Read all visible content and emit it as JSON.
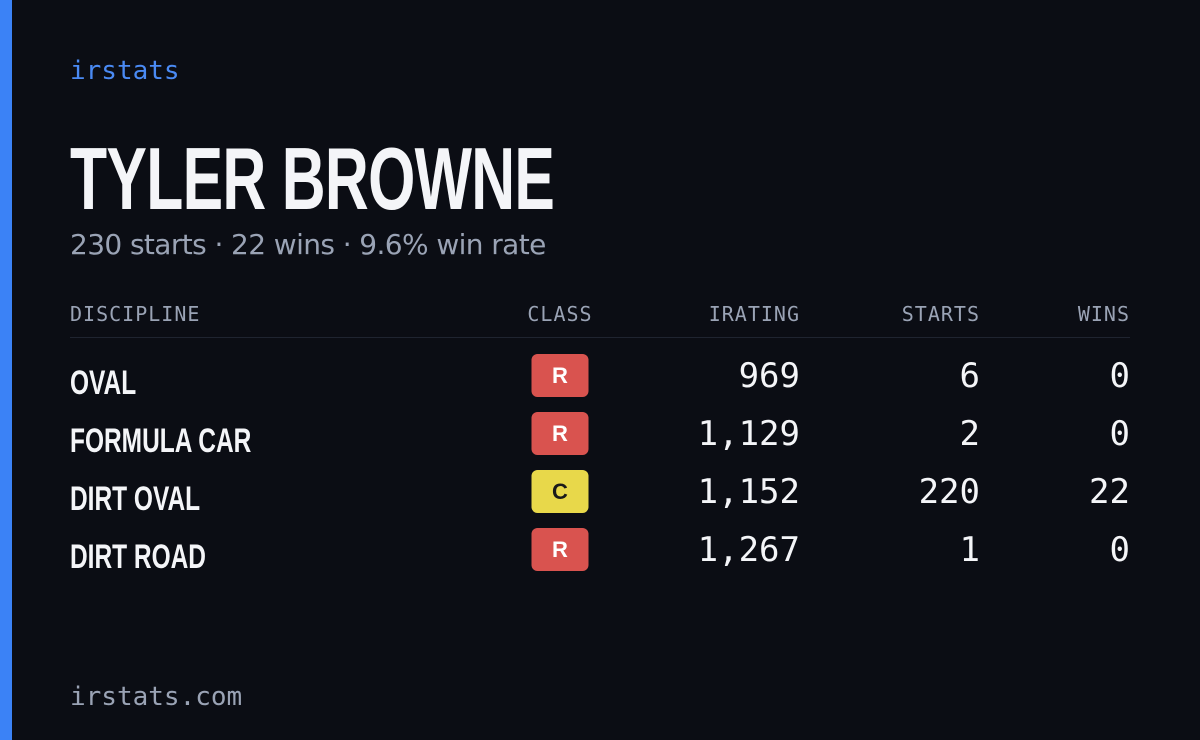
{
  "brand": "irstats",
  "driver": {
    "name": "TYLER BROWNE",
    "summary": "230 starts · 22 wins · 9.6% win rate"
  },
  "table": {
    "headers": [
      "DISCIPLINE",
      "CLASS",
      "IRATING",
      "STARTS",
      "WINS"
    ],
    "rows": [
      [
        "OVAL",
        "R",
        "969",
        "6",
        "0"
      ],
      [
        "FORMULA CAR",
        "R",
        "1,129",
        "2",
        "0"
      ],
      [
        "DIRT OVAL",
        "C",
        "1,152",
        "220",
        "22"
      ],
      [
        "DIRT ROAD",
        "R",
        "1,267",
        "1",
        "0"
      ]
    ],
    "class_colors": [
      "#d9534f",
      "#d9534f",
      "#e8d84a",
      "#d9534f"
    ]
  },
  "footer": "irstats.com"
}
